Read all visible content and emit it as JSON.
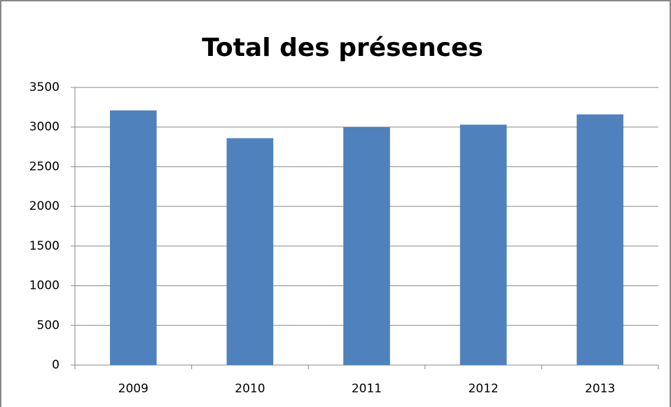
{
  "chart_data": {
    "type": "bar",
    "title": "Total des présences",
    "categories": [
      "2009",
      "2010",
      "2011",
      "2012",
      "2013"
    ],
    "values": [
      3210,
      2860,
      3000,
      3030,
      3160
    ],
    "color": "#4f81bd",
    "ylim": [
      0,
      3500
    ],
    "yticks": [
      0,
      500,
      1000,
      1500,
      2000,
      2500,
      3000,
      3500
    ],
    "grid": true
  }
}
